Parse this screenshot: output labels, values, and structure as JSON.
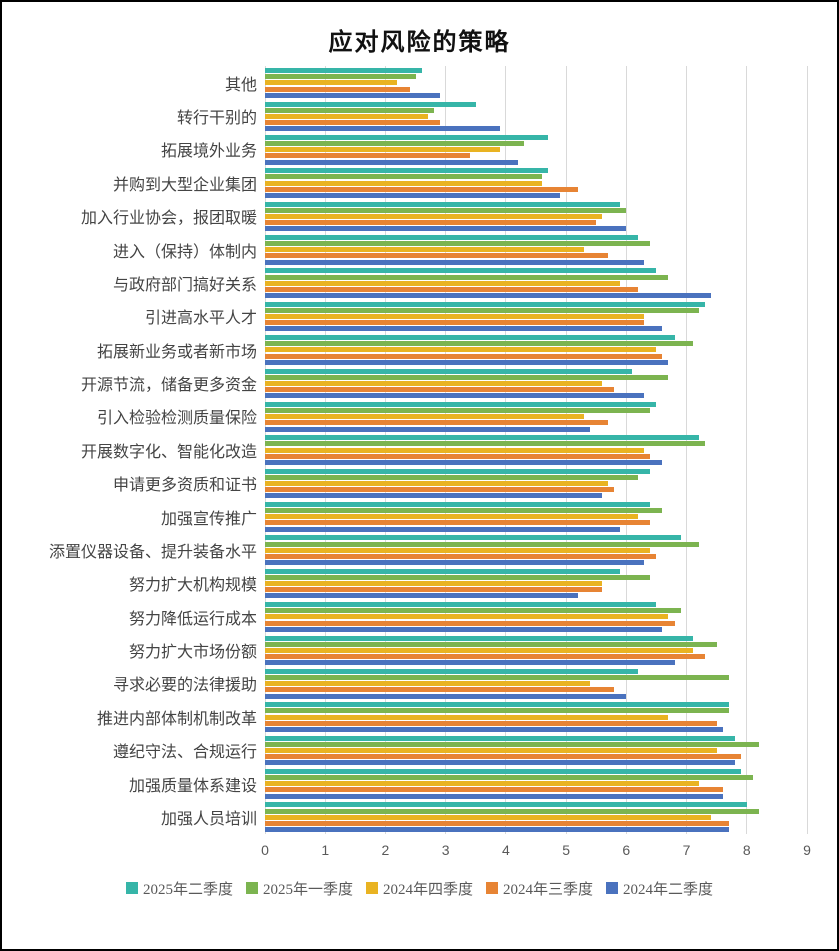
{
  "page": {
    "title": "应对风险的策略"
  },
  "chart_data": {
    "type": "bar",
    "orientation": "horizontal",
    "title": "应对风险的策略",
    "xlabel": "",
    "ylabel": "",
    "xlim": [
      0,
      9
    ],
    "x_ticks": [
      0,
      1,
      2,
      3,
      4,
      5,
      6,
      7,
      8,
      9
    ],
    "grid": true,
    "legend_position": "bottom",
    "gridline_color": "#d9d9d9",
    "categories": [
      "其他",
      "转行干别的",
      "拓展境外业务",
      "并购到大型企业集团",
      "加入行业协会，报团取暖",
      "进入（保持）体制内",
      "与政府部门搞好关系",
      "引进高水平人才",
      "拓展新业务或者新市场",
      "开源节流，储备更多资金",
      "引入检验检测质量保险",
      "开展数字化、智能化改造",
      "申请更多资质和证书",
      "加强宣传推广",
      "添置仪器设备、提升装备水平",
      "努力扩大机构规模",
      "努力降低运行成本",
      "努力扩大市场份额",
      "寻求必要的法律援助",
      "推进内部体制机制改革",
      "遵纪守法、合规运行",
      "加强质量体系建设",
      "加强人员培训"
    ],
    "series": [
      {
        "name": "2025年二季度",
        "color": "#36b5a8",
        "values": [
          2.6,
          3.5,
          4.7,
          4.7,
          5.9,
          6.2,
          6.5,
          7.3,
          6.8,
          6.1,
          6.5,
          7.2,
          6.4,
          6.4,
          6.9,
          5.9,
          6.5,
          7.1,
          6.2,
          7.7,
          7.8,
          7.9,
          8.0
        ]
      },
      {
        "name": "2025年一季度",
        "color": "#7cb450",
        "values": [
          2.5,
          2.8,
          4.3,
          4.6,
          6.0,
          6.4,
          6.7,
          7.2,
          7.1,
          6.7,
          6.4,
          7.3,
          6.2,
          6.6,
          7.2,
          6.4,
          6.9,
          7.5,
          7.7,
          7.7,
          8.2,
          8.1,
          8.2
        ]
      },
      {
        "name": "2024年四季度",
        "color": "#e9b322",
        "values": [
          2.2,
          2.7,
          3.9,
          4.6,
          5.6,
          5.3,
          5.9,
          6.3,
          6.5,
          5.6,
          5.3,
          6.3,
          5.7,
          6.2,
          6.4,
          5.6,
          6.7,
          7.1,
          5.4,
          6.7,
          7.5,
          7.2,
          7.4
        ]
      },
      {
        "name": "2024年三季度",
        "color": "#e78434",
        "values": [
          2.4,
          2.9,
          3.4,
          5.2,
          5.5,
          5.7,
          6.2,
          6.3,
          6.6,
          5.8,
          5.7,
          6.4,
          5.8,
          6.4,
          6.5,
          5.6,
          6.8,
          7.3,
          5.8,
          7.5,
          7.9,
          7.6,
          7.7
        ]
      },
      {
        "name": "2024年二季度",
        "color": "#4a72be",
        "values": [
          2.9,
          3.9,
          4.2,
          4.9,
          6.0,
          6.3,
          7.4,
          6.6,
          6.7,
          6.3,
          5.4,
          6.6,
          5.6,
          5.9,
          6.3,
          5.2,
          6.6,
          6.8,
          6.0,
          7.6,
          7.8,
          7.6,
          7.7
        ]
      }
    ]
  }
}
